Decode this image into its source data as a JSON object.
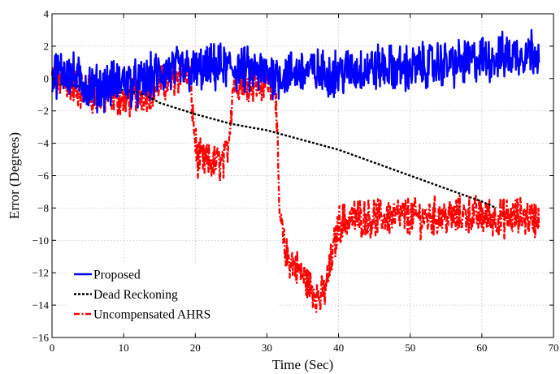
{
  "chart_data": {
    "type": "line",
    "title": "",
    "xlabel": "Time (Sec)",
    "ylabel": "Error (Degrees)",
    "xlim": [
      0,
      70
    ],
    "ylim": [
      -16,
      4
    ],
    "xticks": [
      0,
      10,
      20,
      30,
      40,
      50,
      60,
      70
    ],
    "yticks": [
      -16,
      -14,
      -12,
      -10,
      -8,
      -6,
      -4,
      -2,
      0,
      2,
      4
    ],
    "xtick_labels": [
      "0",
      "10",
      "20",
      "30",
      "40",
      "50",
      "60",
      "70"
    ],
    "ytick_labels": [
      "−16",
      "−14",
      "−12",
      "−10",
      "−8",
      "−6",
      "−4",
      "−2",
      "0",
      "2",
      "4"
    ],
    "grid": true,
    "legend_position": "bottom-left",
    "series": [
      {
        "name": "Proposed",
        "color": "#0000ff",
        "style": "solid",
        "x": [
          0,
          2,
          4,
          6,
          8,
          10,
          12,
          14,
          16,
          18,
          20,
          22,
          24,
          26,
          28,
          30,
          32,
          34,
          36,
          38,
          40,
          42,
          44,
          46,
          48,
          50,
          52,
          54,
          56,
          58,
          60,
          62,
          64,
          66,
          68
        ],
        "y": [
          0.2,
          0.5,
          -0.2,
          -0.6,
          -0.4,
          -0.1,
          -0.4,
          0.1,
          0.4,
          0.6,
          0.4,
          0.6,
          0.7,
          0.6,
          0.4,
          0.3,
          0.2,
          0.4,
          0.5,
          0.3,
          0.4,
          0.5,
          0.6,
          0.7,
          0.6,
          0.6,
          0.8,
          0.9,
          0.9,
          1.0,
          1.2,
          1.3,
          1.4,
          1.6,
          1.8
        ],
        "noise_amplitude": 1.2
      },
      {
        "name": "Dead Reckoning",
        "color": "#000000",
        "style": "dotted",
        "x": [
          0,
          5,
          10,
          13,
          15,
          20,
          25,
          30,
          35,
          40,
          45,
          50,
          55,
          60,
          62
        ],
        "y": [
          -0.3,
          -0.5,
          -0.7,
          -1.0,
          -1.5,
          -2.2,
          -2.8,
          -3.2,
          -3.8,
          -4.4,
          -5.2,
          -6.0,
          -6.8,
          -7.6,
          -8.0
        ]
      },
      {
        "name": "Uncompensated AHRS",
        "color": "#ff0000",
        "style": "dash-dot",
        "x": [
          0,
          2,
          4,
          6,
          8,
          10,
          12,
          14,
          16,
          18,
          19.2,
          19.8,
          20.3,
          22,
          24,
          24.6,
          25.3,
          27,
          29,
          30.6,
          31.1,
          31.7,
          32.5,
          34,
          36,
          37.5,
          38.3,
          39.2,
          40,
          42,
          44,
          46,
          48,
          50,
          52,
          54,
          56,
          58,
          60,
          62,
          64,
          66,
          68
        ],
        "y": [
          0.0,
          -0.3,
          -0.7,
          -1.1,
          -1.0,
          -1.3,
          -1.0,
          -0.6,
          -0.2,
          0.3,
          0.4,
          -3.0,
          -5.0,
          -5.2,
          -5.2,
          -4.0,
          -0.3,
          0.0,
          -0.4,
          0.0,
          1.0,
          -8.0,
          -10.8,
          -11.6,
          -12.8,
          -13.6,
          -12.8,
          -10.8,
          -9.0,
          -8.6,
          -8.6,
          -8.6,
          -8.5,
          -8.5,
          -8.6,
          -8.5,
          -8.6,
          -8.4,
          -8.5,
          -8.6,
          -8.6,
          -8.5,
          -8.7
        ],
        "noise_amplitude": 1.0
      }
    ]
  }
}
